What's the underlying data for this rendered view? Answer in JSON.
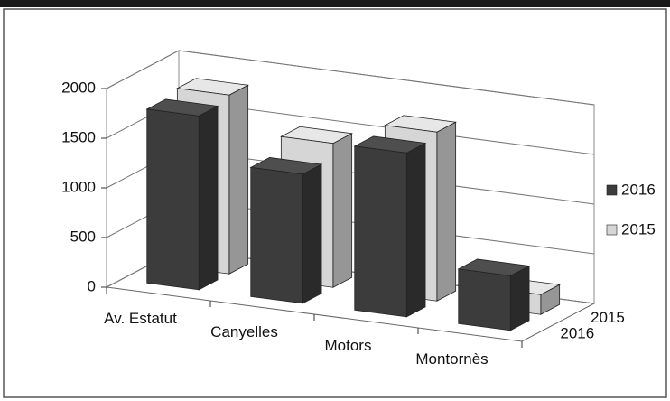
{
  "chart_data": {
    "type": "bar",
    "categories": [
      "Av. Estatut",
      "Canyelles",
      "Motors",
      "Montornès"
    ],
    "series": [
      {
        "name": "2016",
        "color": "#3c3c3c",
        "values": [
          1750,
          1300,
          1650,
          550
        ]
      },
      {
        "name": "2015",
        "color": "#d6d6d6",
        "values": [
          1800,
          1450,
          1700,
          200
        ]
      }
    ],
    "ylim": [
      0,
      2000
    ],
    "yticks": [
      0,
      500,
      1000,
      1500,
      2000
    ],
    "grid": true,
    "legend": "right"
  }
}
